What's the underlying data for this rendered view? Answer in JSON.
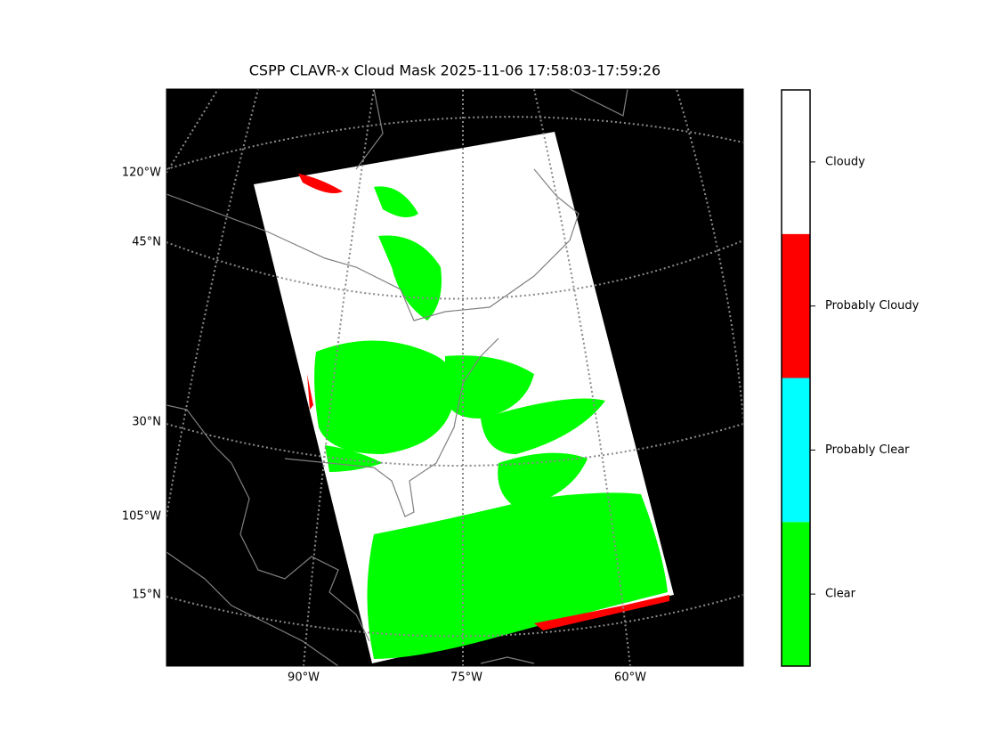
{
  "title": "CSPP CLAVR-x Cloud Mask 2025-11-06 17:58:03-17:59:26",
  "map": {
    "left_labels": [
      "120°W",
      "45°N",
      "30°N",
      "105°W",
      "15°N"
    ],
    "bottom_labels": [
      "90°W",
      "75°W",
      "60°W"
    ]
  },
  "colorbar": {
    "classes": [
      {
        "label": "Clear",
        "color": "#00ff00"
      },
      {
        "label": "Probably Clear",
        "color": "#00ffff"
      },
      {
        "label": "Probably Cloudy",
        "color": "#ff0000"
      },
      {
        "label": "Cloudy",
        "color": "#ffffff"
      }
    ]
  }
}
